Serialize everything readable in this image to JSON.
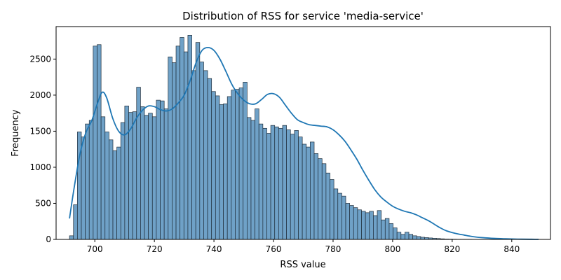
{
  "chart_data": {
    "type": "bar",
    "title": "Distribution of RSS for service 'media-service'",
    "xlabel": "RSS value",
    "ylabel": "Frequency",
    "xlim": [
      687,
      853
    ],
    "ylim": [
      0,
      2950
    ],
    "x_ticks": [
      700,
      720,
      740,
      760,
      780,
      800,
      820,
      840
    ],
    "y_ticks": [
      0,
      500,
      1000,
      1500,
      2000,
      2500
    ],
    "bin_start": 691.5,
    "bin_width": 1.325,
    "counts": [
      50,
      480,
      1490,
      1420,
      1600,
      1650,
      2680,
      2700,
      1700,
      1490,
      1380,
      1230,
      1280,
      1620,
      1850,
      1760,
      1770,
      2110,
      1840,
      1720,
      1750,
      1700,
      1930,
      1920,
      1810,
      2530,
      2450,
      2680,
      2800,
      2600,
      2830,
      2340,
      2730,
      2460,
      2340,
      2230,
      2050,
      1990,
      1870,
      1880,
      1980,
      2070,
      2080,
      2100,
      2180,
      1690,
      1650,
      1810,
      1600,
      1540,
      1470,
      1580,
      1560,
      1540,
      1580,
      1520,
      1460,
      1510,
      1420,
      1320,
      1280,
      1350,
      1190,
      1120,
      1050,
      920,
      830,
      700,
      640,
      600,
      500,
      470,
      440,
      410,
      390,
      370,
      390,
      330,
      400,
      270,
      290,
      220,
      160,
      100,
      70,
      100,
      70,
      50,
      40,
      30,
      25,
      20,
      15,
      12,
      8,
      5,
      4,
      3,
      2,
      2,
      2,
      2,
      1,
      1,
      1,
      1,
      1,
      1,
      1,
      1,
      0,
      0,
      0,
      0,
      0,
      0,
      0,
      0
    ],
    "kde": {
      "x": [
        691.5,
        693,
        695,
        697,
        699,
        701,
        702.5,
        704,
        706,
        708,
        710,
        712,
        714,
        716,
        718,
        720,
        722,
        724,
        726,
        728,
        730,
        732,
        734,
        736,
        738,
        740,
        742,
        744,
        746,
        748,
        750,
        752,
        754,
        756,
        758,
        760,
        762,
        764,
        766,
        768,
        770,
        772,
        774,
        776,
        778,
        780,
        782,
        784,
        786,
        788,
        790,
        792,
        794,
        796,
        798,
        800,
        802,
        804,
        806,
        808,
        810,
        812,
        814,
        816,
        818,
        820,
        822,
        824,
        826,
        828,
        830,
        834,
        838,
        842,
        846,
        849
      ],
      "y": [
        290,
        700,
        1180,
        1480,
        1650,
        1900,
        2040,
        1960,
        1680,
        1500,
        1450,
        1530,
        1680,
        1790,
        1850,
        1840,
        1800,
        1780,
        1810,
        1890,
        2000,
        2200,
        2450,
        2620,
        2660,
        2620,
        2500,
        2330,
        2150,
        2020,
        1930,
        1880,
        1880,
        1940,
        2010,
        2020,
        1970,
        1860,
        1750,
        1660,
        1620,
        1590,
        1580,
        1570,
        1560,
        1520,
        1450,
        1360,
        1240,
        1110,
        960,
        820,
        690,
        590,
        520,
        460,
        420,
        390,
        370,
        340,
        300,
        260,
        210,
        160,
        120,
        95,
        75,
        60,
        45,
        33,
        25,
        14,
        8,
        4,
        2,
        1
      ]
    },
    "colors": {
      "bar_fill": "#6fa1c7",
      "bar_edge": "#1f2d3a",
      "kde_line": "#1f77b4"
    },
    "grid": false,
    "legend": "none"
  }
}
